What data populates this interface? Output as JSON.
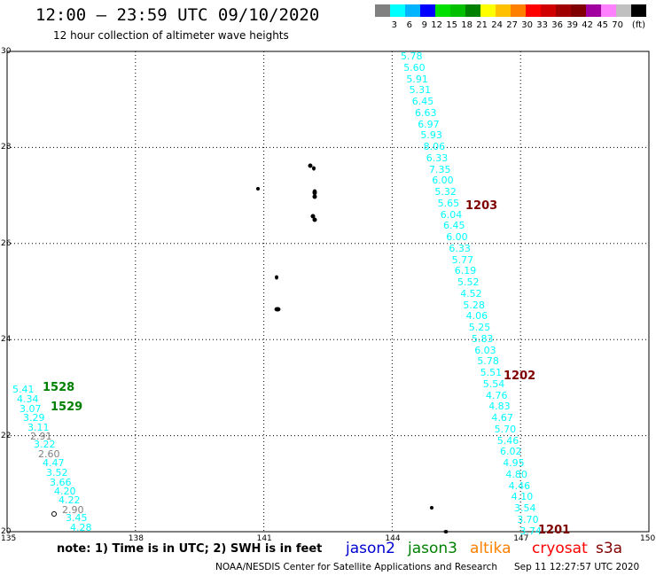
{
  "title": "12:00 – 23:59 UTC 09/10/2020",
  "subtitle": "12 hour collection of altimeter wave heights",
  "colorbar": {
    "colors": [
      "#808080",
      "#00ffff",
      "#00b4ff",
      "#0000ff",
      "#00e000",
      "#00c000",
      "#008000",
      "#ffff00",
      "#ffc000",
      "#ff8000",
      "#ff0000",
      "#d00000",
      "#a00000",
      "#800000",
      "#a000a0",
      "#ff80ff",
      "#c0c0c0",
      "#000000"
    ],
    "labels": [
      "3",
      "6",
      "9",
      "12",
      "15",
      "18",
      "21",
      "24",
      "27",
      "30",
      "33",
      "36",
      "39",
      "42",
      "45",
      "70",
      "(ft)"
    ]
  },
  "map": {
    "lon_range": [
      135,
      150
    ],
    "lat_range": [
      20,
      30
    ],
    "x_ticks": [
      "135",
      "138",
      "141",
      "144",
      "147",
      "150"
    ],
    "y_ticks": [
      "30",
      "28",
      "26",
      "24",
      "22",
      "20"
    ],
    "grid": "dotted"
  },
  "readings": [
    {
      "t": "5.78",
      "c": "#00ffff"
    },
    {
      "t": "5.60",
      "c": "#00ffff"
    },
    {
      "t": "5.91",
      "c": "#00ffff"
    },
    {
      "t": "5.31",
      "c": "#00ffff"
    },
    {
      "t": "6.45",
      "c": "#00ffff"
    },
    {
      "t": "6.63",
      "c": "#00ffff"
    },
    {
      "t": "6.97",
      "c": "#00ffff"
    },
    {
      "t": "5.93",
      "c": "#00ffff"
    },
    {
      "t": "8.06",
      "c": "#00ffff"
    },
    {
      "t": "6.33",
      "c": "#00ffff"
    },
    {
      "t": "7.35",
      "c": "#00ffff"
    },
    {
      "t": "6.00",
      "c": "#00ffff"
    },
    {
      "t": "5.32",
      "c": "#00ffff"
    },
    {
      "t": "5.65",
      "c": "#00ffff"
    },
    {
      "t": "6.04",
      "c": "#00ffff"
    },
    {
      "t": "6.45",
      "c": "#00ffff"
    },
    {
      "t": "6.00",
      "c": "#00ffff"
    },
    {
      "t": "6.33",
      "c": "#00ffff"
    },
    {
      "t": "5.77",
      "c": "#00ffff"
    },
    {
      "t": "6.19",
      "c": "#00ffff"
    },
    {
      "t": "5.52",
      "c": "#00ffff"
    },
    {
      "t": "4.52",
      "c": "#00ffff"
    },
    {
      "t": "5.28",
      "c": "#00ffff"
    },
    {
      "t": "4.06",
      "c": "#00ffff"
    },
    {
      "t": "5.25",
      "c": "#00ffff"
    },
    {
      "t": "5.83",
      "c": "#00ffff"
    },
    {
      "t": "6.03",
      "c": "#00ffff"
    },
    {
      "t": "5.78",
      "c": "#00ffff"
    },
    {
      "t": "5.51",
      "c": "#00ffff"
    },
    {
      "t": "5.54",
      "c": "#00ffff"
    },
    {
      "t": "4.76",
      "c": "#00ffff"
    },
    {
      "t": "4.83",
      "c": "#00ffff"
    },
    {
      "t": "4.67",
      "c": "#00ffff"
    },
    {
      "t": "5.70",
      "c": "#00ffff"
    },
    {
      "t": "5.46",
      "c": "#00ffff"
    },
    {
      "t": "6.02",
      "c": "#00ffff"
    },
    {
      "t": "4.95",
      "c": "#00ffff"
    },
    {
      "t": "4.80",
      "c": "#00ffff"
    },
    {
      "t": "4.46",
      "c": "#00ffff"
    },
    {
      "t": "4.10",
      "c": "#00ffff"
    },
    {
      "t": "3.54",
      "c": "#00ffff"
    },
    {
      "t": "3.70",
      "c": "#00ffff"
    },
    {
      "t": "3.74",
      "c": "#00ffff"
    },
    {
      "t": "5.41",
      "c": "#00ffff"
    },
    {
      "t": "4.34",
      "c": "#00ffff"
    },
    {
      "t": "3.07",
      "c": "#00ffff"
    },
    {
      "t": "3.29",
      "c": "#00ffff"
    },
    {
      "t": "3.11",
      "c": "#00ffff"
    },
    {
      "t": "2.91",
      "c": "#808080"
    },
    {
      "t": "3.22",
      "c": "#00ffff"
    },
    {
      "t": "2.60",
      "c": "#808080"
    },
    {
      "t": "4.47",
      "c": "#00ffff"
    },
    {
      "t": "3.52",
      "c": "#00ffff"
    },
    {
      "t": "3.66",
      "c": "#00ffff"
    },
    {
      "t": "4.20",
      "c": "#00ffff"
    },
    {
      "t": "4.22",
      "c": "#00ffff"
    },
    {
      "t": "2.90",
      "c": "#808080"
    },
    {
      "t": "3.45",
      "c": "#00ffff"
    },
    {
      "t": "4.28",
      "c": "#00ffff"
    }
  ],
  "passes": [
    {
      "t": "1203",
      "c": "#800000"
    },
    {
      "t": "1202",
      "c": "#800000"
    },
    {
      "t": "1201",
      "c": "#800000"
    },
    {
      "t": "1528",
      "c": "#008000"
    },
    {
      "t": "1529",
      "c": "#008000"
    }
  ],
  "note": "note: 1) Time is in UTC; 2) SWH is in feet",
  "legend": [
    {
      "name": "jason2",
      "color": "#0000d0"
    },
    {
      "name": "jason3",
      "color": "#008000"
    },
    {
      "name": "altika",
      "color": "#ff8000"
    },
    {
      "name": "cryosat",
      "color": "#ff0000"
    },
    {
      "name": "s3a",
      "color": "#800000"
    }
  ],
  "credit": "NOAA/NESDIS Center for Satellite Applications and Research",
  "timestamp": "Sep 11 12:27:57 UTC 2020"
}
